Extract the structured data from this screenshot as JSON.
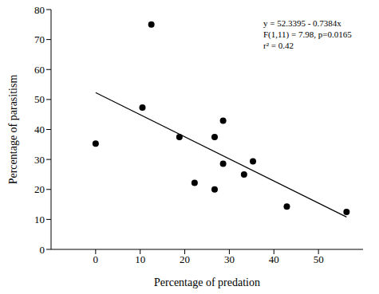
{
  "chart_data": {
    "type": "scatter",
    "x_label": "Percentage of predation",
    "y_label": "Percentage of parasitism",
    "x": [
      0,
      10.5,
      12.5,
      18.8,
      22.2,
      26.7,
      26.7,
      28.6,
      28.6,
      33.3,
      35.3,
      42.9,
      56.3
    ],
    "values": [
      35.3,
      47.3,
      75,
      37.5,
      22.2,
      37.5,
      20,
      42.9,
      28.6,
      25,
      29.4,
      14.3,
      12.5
    ],
    "color": "#000000",
    "marker": "circle",
    "fit": {
      "x": [
        0,
        56.3
      ],
      "values": [
        52.3,
        10.8
      ],
      "color": "#000000",
      "line_style": "solid"
    },
    "annotations": [
      "y = 52.3395 - 0.7384x",
      "F(1,11) = 7.98, p=0.0165",
      "r² = 0.42"
    ],
    "xlim": [
      -10,
      60
    ],
    "xticks": [
      0,
      10,
      20,
      30,
      40,
      50
    ],
    "ylim": [
      0,
      80
    ],
    "yticks": [
      0,
      10,
      20,
      30,
      40,
      50,
      60,
      70,
      80
    ],
    "grid": false
  }
}
